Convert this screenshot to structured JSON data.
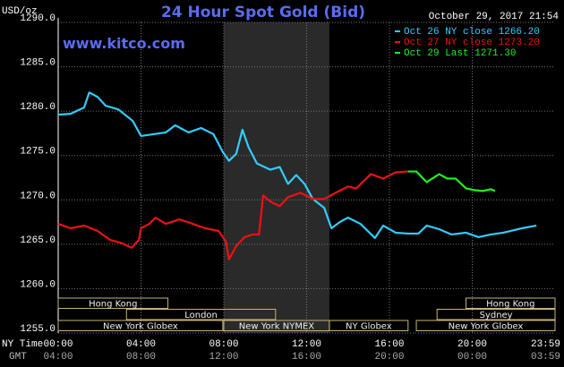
{
  "chart_data": {
    "type": "line",
    "title": "24 Hour Spot Gold (Bid)",
    "unit": "USD/oz",
    "timestamp": "October 29, 2017 21:54",
    "site": "www.kitco.com",
    "x_label": "NY Time",
    "x2_label": "GMT",
    "xlim": [
      0,
      24
    ],
    "xticks": [
      {
        "value": 0,
        "label": "00:00"
      },
      {
        "value": 4,
        "label": "04:00"
      },
      {
        "value": 8,
        "label": "08:00"
      },
      {
        "value": 12,
        "label": "12:00"
      },
      {
        "value": 16,
        "label": "16:00"
      },
      {
        "value": 20,
        "label": "20:00"
      },
      {
        "value": 23.983,
        "label": "23:59"
      }
    ],
    "gmt_tick_labels": [
      "04:00",
      "08:00",
      "12:00",
      "16:00",
      "20:00",
      "00:00",
      "03:59"
    ],
    "ylim": [
      1255,
      1290
    ],
    "yticks": [
      {
        "value": 1255,
        "label": "1255.0"
      },
      {
        "value": 1260,
        "label": "1260.0"
      },
      {
        "value": 1265,
        "label": "1265.0"
      },
      {
        "value": 1270,
        "label": "1270.0"
      },
      {
        "value": 1275,
        "label": "1275.0"
      },
      {
        "value": 1280,
        "label": "1280.0"
      },
      {
        "value": 1285,
        "label": "1285.0"
      },
      {
        "value": 1290,
        "label": "1290.0"
      }
    ],
    "grid": true,
    "shaded_region": [
      8.0,
      13.1
    ],
    "series": [
      {
        "name": "Oct 26 NY close 1266.20",
        "color": "#33ccff",
        "x": [
          0,
          0.6,
          1.25,
          1.5,
          1.9,
          2.3,
          2.9,
          3.6,
          4.0,
          4.6,
          5.2,
          5.65,
          6.3,
          6.9,
          7.5,
          7.95,
          8.25,
          8.6,
          8.9,
          9.2,
          9.6,
          10.25,
          10.7,
          11.1,
          11.5,
          11.9,
          12.3,
          12.85,
          13.2,
          13.6,
          14.0,
          14.6,
          15.3,
          15.7,
          16.3,
          16.9,
          17.4,
          17.8,
          18.4,
          19.0,
          19.7,
          20.3,
          20.9,
          21.5,
          22.4,
          23.1
        ],
        "values": [
          1279.6,
          1279.7,
          1280.4,
          1282.1,
          1281.6,
          1280.6,
          1280.2,
          1278.9,
          1277.2,
          1277.4,
          1277.6,
          1278.4,
          1277.6,
          1278.1,
          1277.4,
          1275.4,
          1274.4,
          1275.2,
          1277.9,
          1275.9,
          1274.1,
          1273.4,
          1273.7,
          1271.8,
          1272.8,
          1271.8,
          1270.1,
          1269.1,
          1266.8,
          1267.5,
          1268.0,
          1267.3,
          1265.7,
          1267.1,
          1266.3,
          1266.2,
          1266.2,
          1267.1,
          1266.7,
          1266.1,
          1266.3,
          1265.8,
          1266.1,
          1266.3,
          1266.8,
          1267.1
        ]
      },
      {
        "name": "Oct 27 NY close 1273.20",
        "color": "#ee1111",
        "x": [
          0,
          0.6,
          1.25,
          1.9,
          2.5,
          3.1,
          3.55,
          3.9,
          4.0,
          4.4,
          4.7,
          5.2,
          5.85,
          6.5,
          7.1,
          7.75,
          8.1,
          8.25,
          8.6,
          9.0,
          9.4,
          9.7,
          9.9,
          10.25,
          10.7,
          11.1,
          11.7,
          12.3,
          12.85,
          13.4,
          14.0,
          14.4,
          15.1,
          15.7,
          16.3,
          16.9
        ],
        "values": [
          1267.3,
          1266.8,
          1267.1,
          1266.5,
          1265.5,
          1265.1,
          1264.6,
          1265.5,
          1266.8,
          1267.3,
          1268.0,
          1267.3,
          1267.8,
          1267.3,
          1266.8,
          1266.5,
          1265.3,
          1263.3,
          1264.8,
          1265.8,
          1266.1,
          1266.1,
          1270.5,
          1269.8,
          1269.3,
          1270.3,
          1270.8,
          1270.1,
          1270.1,
          1270.8,
          1271.5,
          1271.3,
          1272.9,
          1272.4,
          1273.1,
          1273.2
        ]
      },
      {
        "name": "Oct 29 Last 1271.30",
        "color": "#22ee22",
        "x": [
          16.9,
          17.3,
          17.8,
          18.4,
          18.8,
          19.2,
          19.7,
          20.1,
          20.5,
          20.9,
          21.1
        ],
        "values": [
          1273.2,
          1273.2,
          1272.0,
          1272.9,
          1272.4,
          1272.4,
          1271.3,
          1271.1,
          1271.0,
          1271.2,
          1271.0
        ]
      }
    ],
    "sessions": [
      [
        {
          "name": "Hong Kong",
          "start": 0,
          "end": 5.3
        },
        {
          "name": "Hong Kong",
          "start": 19.7,
          "end": 24
        }
      ],
      [
        {
          "name": "London",
          "start": 3.3,
          "end": 10.5
        },
        {
          "name": "Sydney",
          "start": 18.3,
          "end": 24
        }
      ],
      [
        {
          "name": "New York Globex",
          "start": 0,
          "end": 7.95
        },
        {
          "name": "New York NYMEX",
          "start": 8.0,
          "end": 13.1
        },
        {
          "name": "NY Globex",
          "start": 13.1,
          "end": 16.9
        },
        {
          "name": "New York Globex",
          "start": 17.3,
          "end": 24
        }
      ]
    ]
  }
}
